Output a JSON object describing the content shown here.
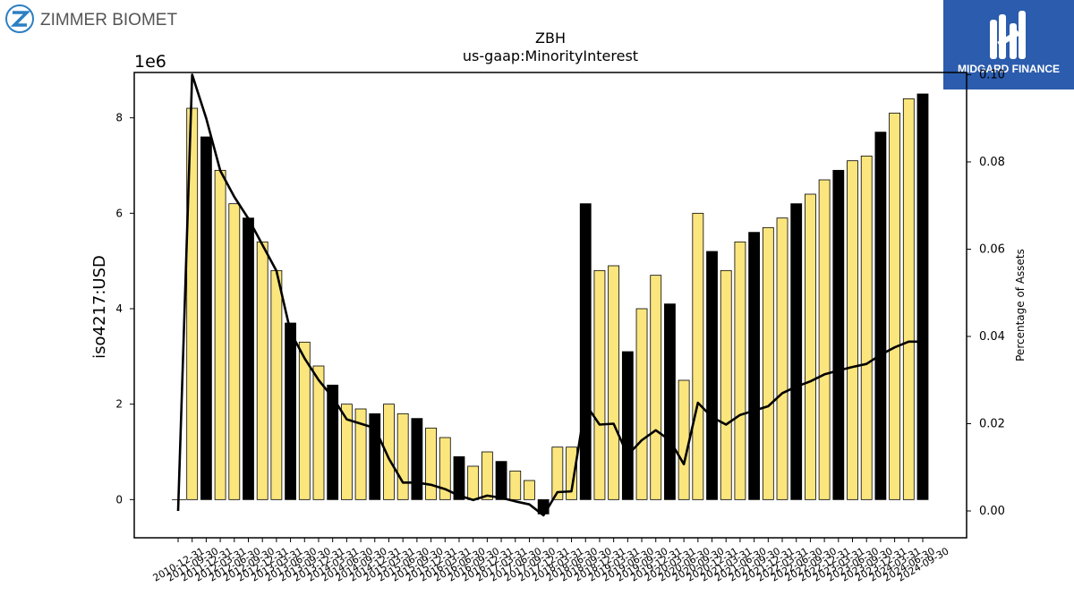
{
  "brand_left": {
    "name": "ZIMMER BIOMET"
  },
  "brand_right": {
    "name": "MIDGARD FINANCE"
  },
  "chart_data": {
    "type": "bar",
    "title": "ZBH",
    "subtitle": "us-gaap:MinorityInterest",
    "ylabel": "iso4217:USD",
    "y_multiplier_label": "1e6",
    "y2label": "Percentage of Assets",
    "ylim": [
      -800000,
      8950000
    ],
    "y2lim": [
      -0.00615,
      0.1005
    ],
    "yticks": [
      0,
      2,
      4,
      6,
      8
    ],
    "y2ticks": [
      "0.00",
      "0.02",
      "0.04",
      "0.06",
      "0.08",
      "0.10"
    ],
    "categories": [
      "2010-12-31",
      "2011-09-30",
      "2011-12-31",
      "2012-03-31",
      "2012-06-30",
      "2012-09-30",
      "2012-12-31",
      "2013-03-31",
      "2013-06-30",
      "2013-09-30",
      "2013-12-31",
      "2014-03-31",
      "2014-06-30",
      "2014-09-30",
      "2014-12-31",
      "2015-03-31",
      "2015-06-30",
      "2015-09-30",
      "2015-12-31",
      "2016-03-31",
      "2016-06-30",
      "2016-09-30",
      "2016-12-31",
      "2017-03-31",
      "2017-06-30",
      "2017-09-30",
      "2017-12-31",
      "2018-03-31",
      "2018-06-30",
      "2018-09-30",
      "2018-12-31",
      "2019-03-31",
      "2019-06-30",
      "2019-09-30",
      "2019-12-31",
      "2020-03-31",
      "2020-06-30",
      "2020-09-30",
      "2020-12-31",
      "2021-03-31",
      "2021-06-30",
      "2021-09-30",
      "2021-12-31",
      "2022-03-31",
      "2022-06-30",
      "2022-09-30",
      "2022-12-31",
      "2023-03-31",
      "2023-06-30",
      "2023-09-30",
      "2023-12-31",
      "2024-03-31",
      "2024-06-30",
      "2024-09-30"
    ],
    "series": [
      {
        "values": [
          null,
          8200000,
          7600000,
          6900000,
          6200000,
          5900000,
          5400000,
          4800000,
          3700000,
          3300000,
          2800000,
          2400000,
          2000000,
          1900000,
          1800000,
          2000000,
          1800000,
          1700000,
          1500000,
          1300000,
          900000,
          700000,
          1000000,
          800000,
          600000,
          400000,
          -300000,
          1100000,
          1100000,
          6200000,
          4800000,
          4900000,
          3100000,
          4000000,
          4700000,
          4100000,
          2500000,
          6000000,
          5200000,
          4800000,
          5400000,
          5600000,
          5700000,
          5900000,
          6200000,
          6400000,
          6700000,
          6900000,
          7100000,
          7200000,
          7700000,
          8100000,
          8400000,
          8500000
        ]
      },
      {
        "values": [
          0.0,
          0.1,
          0.09,
          0.078,
          0.072,
          0.067,
          0.061,
          0.055,
          0.041,
          0.035,
          0.03,
          0.026,
          0.021,
          0.02,
          0.019,
          0.012,
          0.0065,
          0.0065,
          0.006,
          0.005,
          0.0035,
          0.0025,
          0.0035,
          0.003,
          0.0022,
          0.0015,
          -0.001,
          0.0043,
          0.0045,
          0.0245,
          0.0198,
          0.02,
          0.0128,
          0.0162,
          0.0185,
          0.0162,
          0.0107,
          0.0248,
          0.0215,
          0.0198,
          0.022,
          0.023,
          0.024,
          0.027,
          0.0285,
          0.0297,
          0.0313,
          0.0322,
          0.033,
          0.0337,
          0.0358,
          0.0375,
          0.0388,
          0.0388
        ]
      }
    ],
    "highlight_color": "#000000",
    "bar_color": "#fbe67e",
    "line_color": "#000000",
    "grid": false
  }
}
